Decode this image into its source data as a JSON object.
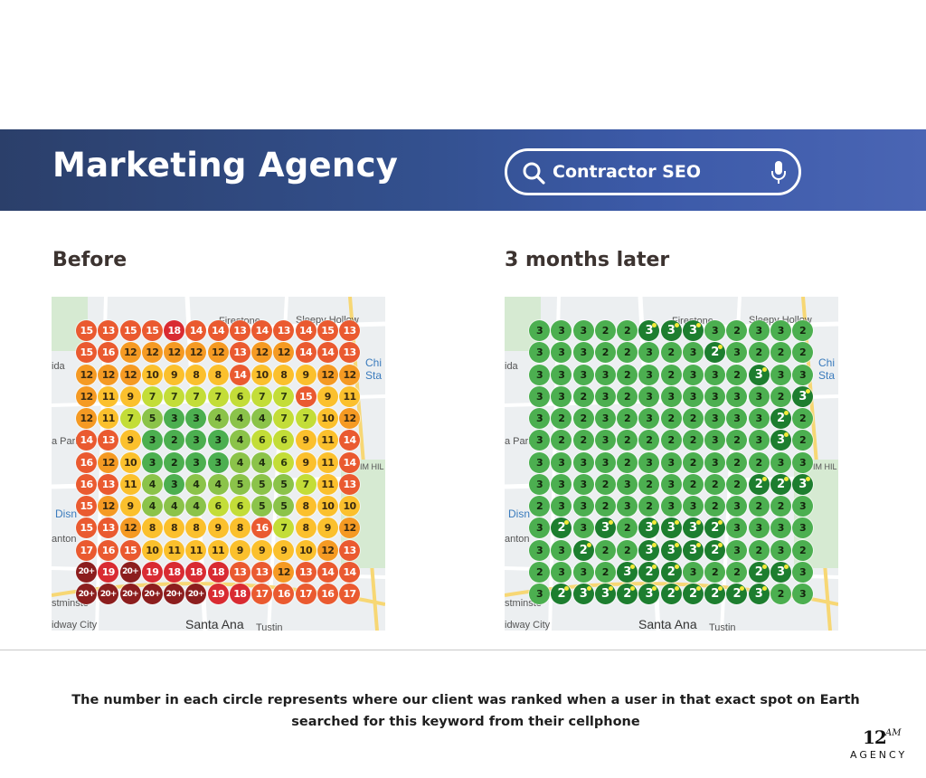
{
  "header": {
    "title": "Marketing Agency",
    "search": {
      "query": "Contractor SEO",
      "icon": "search-icon",
      "mic_icon": "microphone-icon"
    },
    "gradient": [
      "#2b3f6a",
      "#4a65b4"
    ]
  },
  "panels": {
    "before": {
      "heading": "Before",
      "ranks": [
        [
          "15",
          "13",
          "15",
          "15",
          "18",
          "14",
          "14",
          "13",
          "14",
          "13",
          "14",
          "15",
          "13"
        ],
        [
          "15",
          "16",
          "12",
          "12",
          "12",
          "12",
          "12",
          "13",
          "12",
          "12",
          "14",
          "14",
          "13"
        ],
        [
          "12",
          "12",
          "12",
          "10",
          "9",
          "8",
          "8",
          "14",
          "10",
          "8",
          "9",
          "12",
          "12"
        ],
        [
          "12",
          "11",
          "9",
          "7",
          "7",
          "7",
          "7",
          "6",
          "7",
          "7",
          "15",
          "9",
          "11"
        ],
        [
          "12",
          "11",
          "7",
          "5",
          "3",
          "3",
          "4",
          "4",
          "4",
          "7",
          "7",
          "10",
          "12"
        ],
        [
          "14",
          "13",
          "9",
          "3",
          "2",
          "3",
          "3",
          "4",
          "6",
          "6",
          "9",
          "11",
          "14"
        ],
        [
          "16",
          "12",
          "10",
          "3",
          "2",
          "3",
          "3",
          "4",
          "4",
          "6",
          "9",
          "11",
          "14"
        ],
        [
          "16",
          "13",
          "11",
          "4",
          "3",
          "4",
          "4",
          "5",
          "5",
          "5",
          "7",
          "11",
          "13"
        ],
        [
          "15",
          "12",
          "9",
          "4",
          "4",
          "4",
          "6",
          "6",
          "5",
          "5",
          "8",
          "10",
          "10"
        ],
        [
          "15",
          "13",
          "12",
          "8",
          "8",
          "8",
          "9",
          "8",
          "16",
          "7",
          "8",
          "9",
          "12"
        ],
        [
          "17",
          "16",
          "15",
          "10",
          "11",
          "11",
          "11",
          "9",
          "9",
          "9",
          "10",
          "12",
          "13"
        ],
        [
          "20+",
          "19",
          "20+",
          "19",
          "18",
          "18",
          "18",
          "13",
          "13",
          "12",
          "13",
          "14",
          "14"
        ],
        [
          "20+",
          "20+",
          "20+",
          "20+",
          "20+",
          "20+",
          "19",
          "18",
          "17",
          "16",
          "17",
          "16",
          "17"
        ]
      ]
    },
    "after": {
      "heading": "3 months later",
      "ranks": [
        [
          "3",
          "3",
          "3",
          "2",
          "2",
          "3",
          "3",
          "3",
          "3",
          "2",
          "3",
          "3",
          "2"
        ],
        [
          "3",
          "3",
          "3",
          "2",
          "2",
          "3",
          "2",
          "3",
          "2",
          "3",
          "2",
          "2",
          "2"
        ],
        [
          "3",
          "3",
          "3",
          "3",
          "2",
          "3",
          "2",
          "3",
          "3",
          "2",
          "3",
          "3",
          "3"
        ],
        [
          "3",
          "3",
          "2",
          "3",
          "2",
          "3",
          "3",
          "3",
          "3",
          "3",
          "3",
          "2",
          "3"
        ],
        [
          "3",
          "2",
          "2",
          "3",
          "2",
          "3",
          "2",
          "2",
          "3",
          "3",
          "3",
          "2",
          "2"
        ],
        [
          "3",
          "2",
          "2",
          "3",
          "2",
          "2",
          "2",
          "2",
          "3",
          "2",
          "3",
          "3",
          "2"
        ],
        [
          "3",
          "3",
          "3",
          "3",
          "2",
          "3",
          "3",
          "2",
          "3",
          "2",
          "2",
          "3",
          "3"
        ],
        [
          "3",
          "3",
          "3",
          "2",
          "3",
          "2",
          "3",
          "2",
          "2",
          "2",
          "2",
          "2",
          "3"
        ],
        [
          "2",
          "3",
          "3",
          "2",
          "3",
          "2",
          "3",
          "3",
          "2",
          "3",
          "2",
          "2",
          "3"
        ],
        [
          "3",
          "2",
          "3",
          "3",
          "2",
          "3",
          "3",
          "3",
          "2",
          "3",
          "3",
          "3",
          "3"
        ],
        [
          "3",
          "3",
          "2",
          "2",
          "2",
          "3",
          "3",
          "3",
          "2",
          "3",
          "2",
          "3",
          "2"
        ],
        [
          "2",
          "3",
          "3",
          "2",
          "3",
          "2",
          "2",
          "3",
          "2",
          "2",
          "2",
          "3",
          "3"
        ],
        [
          "3",
          "2",
          "3",
          "3",
          "2",
          "3",
          "2",
          "2",
          "2",
          "2",
          "3",
          "2",
          "3"
        ]
      ],
      "highlighted": [
        [
          0,
          5
        ],
        [
          0,
          6
        ],
        [
          0,
          7
        ],
        [
          1,
          8
        ],
        [
          2,
          10
        ],
        [
          3,
          12
        ],
        [
          4,
          11
        ],
        [
          5,
          11
        ],
        [
          7,
          10
        ],
        [
          7,
          11
        ],
        [
          7,
          12
        ],
        [
          9,
          1
        ],
        [
          9,
          3
        ],
        [
          9,
          5
        ],
        [
          9,
          6
        ],
        [
          9,
          7
        ],
        [
          9,
          8
        ],
        [
          10,
          2
        ],
        [
          10,
          5
        ],
        [
          10,
          6
        ],
        [
          10,
          7
        ],
        [
          10,
          8
        ],
        [
          11,
          4
        ],
        [
          11,
          5
        ],
        [
          11,
          6
        ],
        [
          11,
          10
        ],
        [
          11,
          11
        ],
        [
          12,
          1
        ],
        [
          12,
          2
        ],
        [
          12,
          3
        ],
        [
          12,
          4
        ],
        [
          12,
          5
        ],
        [
          12,
          6
        ],
        [
          12,
          7
        ],
        [
          12,
          8
        ],
        [
          12,
          9
        ],
        [
          12,
          10
        ]
      ]
    },
    "map_labels": {
      "firestone": "Firestone",
      "sleepy_hollow": "Sleepy Hollow",
      "ida": "ida",
      "chi": "Chi",
      "sta": "Sta",
      "a_park": "a Park",
      "im_hil": "IM HIL",
      "disn": "Disn",
      "anton": "anton",
      "stminst": "stminste",
      "idway_city": "idway City",
      "santa_ana": "Santa Ana",
      "tustin": "Tustin"
    }
  },
  "footer": {
    "caption_line1": "The number in each circle represents where our client was ranked when a user in that exact spot on Earth",
    "caption_line2": "searched for this keyword from their cellphone"
  },
  "logo": {
    "number": "12",
    "superscript": "AM",
    "word": "AGENCY"
  },
  "colors": {
    "rank_20plus": "#8c1e1e",
    "rank_18_19": "#d92b32",
    "rank_13_17": "#ea5a30",
    "rank_12": "#f59a23",
    "rank_8_11": "#fbc02d",
    "rank_6_7": "#c3dd38",
    "rank_4_5": "#8bc34a",
    "rank_2_3": "#4caf50",
    "rank_highlight": "#1d7e2f"
  }
}
